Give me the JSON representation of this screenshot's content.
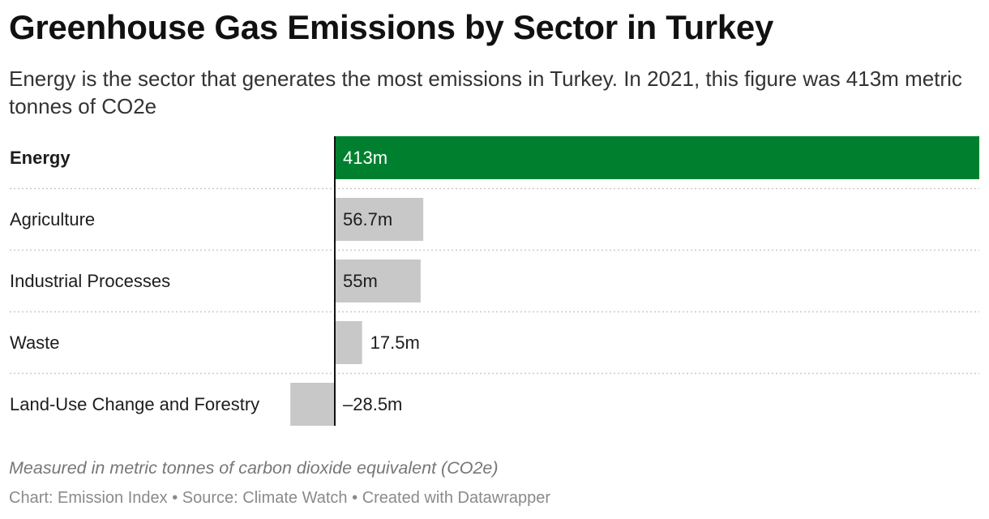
{
  "title": "Greenhouse Gas Emissions by Sector in Turkey",
  "subtitle": "Energy is the sector that generates the most emissions in Turkey. In 2021, this figure was 413m metric tonnes of CO2e",
  "notes": "Measured in metric tonnes of carbon dioxide equivalent (CO2e)",
  "footer": {
    "chart": "Chart: Emission Index",
    "source": "Source: Climate Watch",
    "created": "Created with Datawrapper",
    "separator": "•"
  },
  "colors": {
    "highlight": "#00802f",
    "bar": "#c8c8c8",
    "axis": "#111111",
    "grid": "#c9c9c9",
    "text": "#1d1d1d",
    "label_on_highlight": "#ffffff"
  },
  "chart_data": {
    "type": "bar",
    "orientation": "horizontal",
    "categories": [
      "Energy",
      "Agriculture",
      "Industrial Processes",
      "Waste",
      "Land-Use Change and Forestry"
    ],
    "values": [
      413,
      56.7,
      55,
      17.5,
      -28.5
    ],
    "value_labels": [
      "413m",
      "56.7m",
      "55m",
      "17.5m",
      "–28.5m"
    ],
    "unit": "m metric tonnes CO2e",
    "highlighted": [
      "Energy"
    ],
    "xlim": [
      -28.5,
      413
    ],
    "year": 2021
  }
}
